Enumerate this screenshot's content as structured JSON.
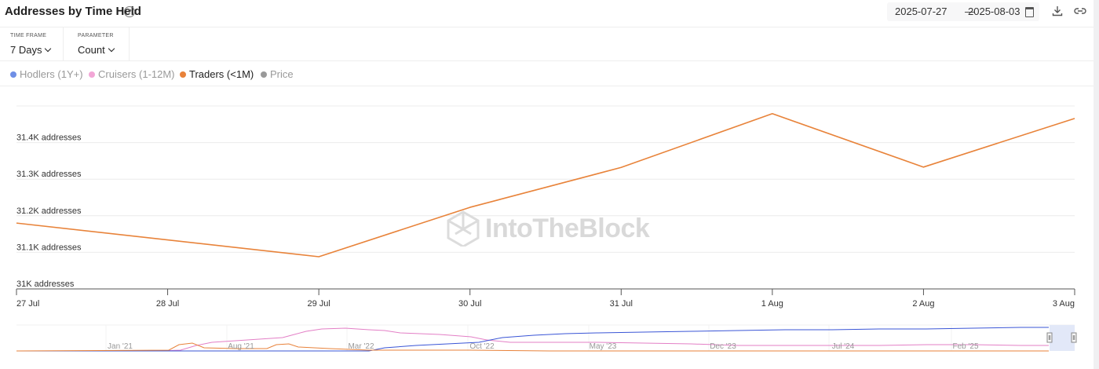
{
  "header": {
    "title": "Addresses by Time Held",
    "help_icon": "question-circle-icon",
    "date_start": "2025-07-27",
    "date_separator": "—",
    "date_end": "2025-08-03",
    "calendar_icon": "calendar-icon",
    "download_icon": "download-icon",
    "link_icon": "link-icon"
  },
  "controls": {
    "timeframe_label": "TIME FRAME",
    "timeframe_value": "7 Days",
    "parameter_label": "PARAMETER",
    "parameter_value": "Count"
  },
  "legend": [
    {
      "label": "Hodlers (1Y+)",
      "color": "#6f8fe6",
      "active": false
    },
    {
      "label": "Cruisers (1-12M)",
      "color": "#f2a6d6",
      "active": false
    },
    {
      "label": "Traders (<1M)",
      "color": "#e8823a",
      "active": true
    },
    {
      "label": "Price",
      "color": "#999999",
      "active": false
    }
  ],
  "watermark": "IntoTheBlock",
  "chart_data": {
    "type": "line",
    "x": [
      "27 Jul",
      "28 Jul",
      "29 Jul",
      "30 Jul",
      "31 Jul",
      "1 Aug",
      "2 Aug",
      "3 Aug"
    ],
    "series": [
      {
        "name": "Traders (<1M)",
        "color": "#e8833a",
        "values": [
          31180,
          null,
          31088,
          31223,
          31332,
          31479,
          31333,
          31466
        ]
      }
    ],
    "y_ticks": [
      31000,
      31100,
      31200,
      31300,
      31400
    ],
    "y_tick_labels": [
      "31K addresses",
      "31.1K addresses",
      "31.2K addresses",
      "31.3K addresses",
      "31.4K addresses"
    ],
    "ylim": [
      31000,
      31500
    ],
    "grid": true,
    "navigator": {
      "labels": [
        "Jan '21",
        "Aug '21",
        "Mar '22",
        "Oct '22",
        "May '23",
        "Dec '23",
        "Jul '24",
        "Feb '25"
      ]
    }
  }
}
